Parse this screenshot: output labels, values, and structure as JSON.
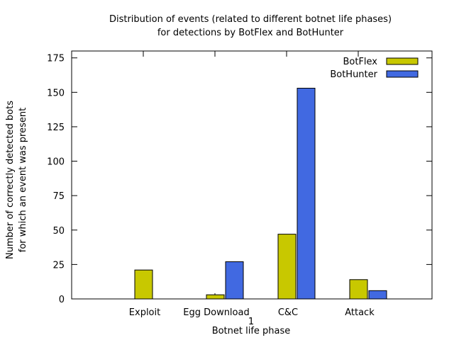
{
  "chart_data": {
    "type": "bar",
    "title_lines": [
      "Distribution of events (related to different botnet life phases)",
      "for detections by BotFlex and BotHunter"
    ],
    "xlabel": "Botnet life phase",
    "xlabel_sub": "1",
    "ylabel_lines": [
      "Number of correctly detected bots",
      "for which an event was present"
    ],
    "categories": [
      "Exploit",
      "Egg Download",
      "C&C",
      "Attack"
    ],
    "ylim": [
      0,
      180
    ],
    "yticks": [
      0,
      25,
      50,
      75,
      100,
      125,
      150,
      175
    ],
    "series": [
      {
        "name": "BotFlex",
        "color": "#c8c800",
        "values": [
          21,
          3,
          47,
          14
        ]
      },
      {
        "name": "BotHunter",
        "color": "#4169e1",
        "values": [
          0,
          27,
          153,
          6
        ]
      }
    ],
    "legend_position": "top-right",
    "grid": false
  }
}
